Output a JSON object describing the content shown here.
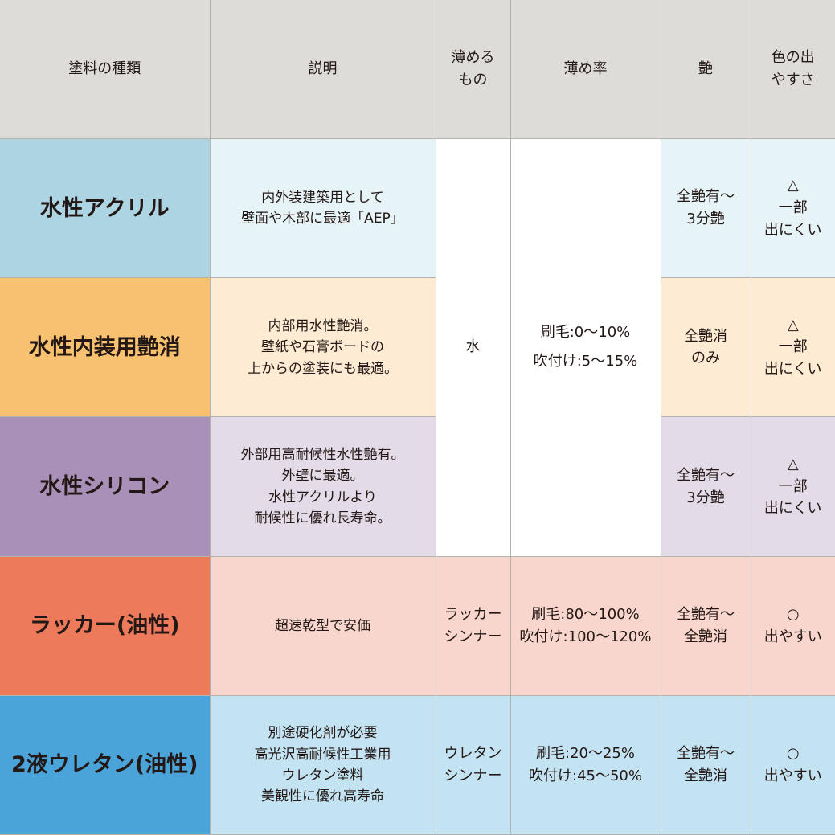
{
  "headers": [
    "塗料の種類",
    "説明",
    "薄める\nもの",
    "薄め率",
    "艶",
    "色の出\nやすさ"
  ],
  "colors": {
    "header": "#dddcd8",
    "merged_cells": "#ffffff"
  },
  "rows": [
    {
      "name": "水性アクリル",
      "description": "内外装建築用として\n壁面や木部に最適「AEP」",
      "thinner": "水",
      "ratio": "刷毛:0〜10%\n吹付け:5〜15%",
      "gloss": "全艶有〜\n3分艶",
      "color_ease": "△\n一部\n出にくい",
      "label_color": "#acd4e3",
      "cell_color": "#e6f3f7"
    },
    {
      "name": "水性内装用艶消",
      "description": "内部用水性艶消。\n壁紙や石膏ボードの\n上からの塗装にも最適。",
      "thinner": "水",
      "ratio": "刷毛:0〜10%\n吹付け:5〜15%",
      "gloss": "全艶消\nのみ",
      "color_ease": "△\n一部\n出にくい",
      "label_color": "#f7c16f",
      "cell_color": "#fdebd3"
    },
    {
      "name": "水性シリコン",
      "description": "外部用高耐候性水性艶有。\n外壁に最適。\n水性アクリルより\n耐候性に優れ長寿命。",
      "thinner": "水",
      "ratio": "刷毛:0〜10%\n吹付け:5〜15%",
      "gloss": "全艶有〜\n3分艶",
      "color_ease": "△\n一部\n出にくい",
      "label_color": "#a990b9",
      "cell_color": "#e4dbe9"
    },
    {
      "name": "ラッカー(油性)",
      "description": "超速乾型で安価",
      "thinner": "ラッカー\nシンナー",
      "ratio": "刷毛:80〜100%\n吹付け:100〜120%",
      "gloss": "全艶有〜\n全艶消",
      "color_ease": "○\n出やすい",
      "label_color": "#ec7a5b",
      "cell_color": "#f8d6cd"
    },
    {
      "name": "2液ウレタン(油性)",
      "description": "別途硬化剤が必要\n高光沢高耐候性工業用\nウレタン塗料\n美観性に優れ高寿命",
      "thinner": "ウレタン\nシンナー",
      "ratio": "刷毛:20〜25%\n吹付け:45〜50%",
      "gloss": "全艶有〜\n全艶消",
      "color_ease": "○\n出やすい",
      "label_color": "#4aa4d9",
      "cell_color": "#c3e3f3"
    }
  ]
}
